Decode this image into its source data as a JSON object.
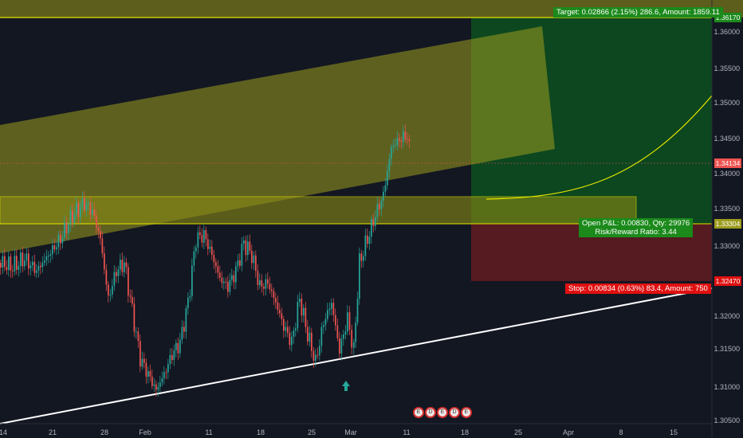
{
  "price_axis": {
    "labels": [
      "1.36000",
      "1.35500",
      "1.35000",
      "1.34500",
      "1.34000",
      "1.33500",
      "1.33000",
      "1.32500",
      "1.32000",
      "1.31500",
      "1.31000",
      "1.30500"
    ]
  },
  "price_badges": {
    "target": "1.36170",
    "current": "1.34134",
    "entry": "1.33304",
    "stop": "1.32470"
  },
  "date_axis": {
    "labels": [
      "14",
      "21",
      "28",
      "Feb",
      "11",
      "18",
      "25",
      "Mar",
      "11",
      "18",
      "25",
      "Apr",
      "8",
      "15"
    ]
  },
  "position": {
    "target_text": "Target: 0.02866 (2.15%) 286.6, Amount: 1859.11",
    "open_pl_text": "Open P&L: 0.00830, Qty: 29976",
    "risk_reward_text": "Risk/Reward Ratio: 3.44",
    "stop_text": "Stop: 0.00834 (0.63%) 83.4, Amount: 750"
  },
  "event_icons": [
    "E",
    "D",
    "E",
    "D",
    "E"
  ],
  "colors": {
    "background": "#131722",
    "bull": "#26a69a",
    "bear": "#ef5350",
    "channel": "#9c9c1e",
    "target_zone": "#0d4a20",
    "stop_zone": "#5a1a22",
    "yellow_line": "#e6e600",
    "trendline": "#ffffff",
    "target_label_bg": "#1b8a1b",
    "stop_label_bg": "#e01010",
    "current_badge_bg": "#ef5350"
  }
}
